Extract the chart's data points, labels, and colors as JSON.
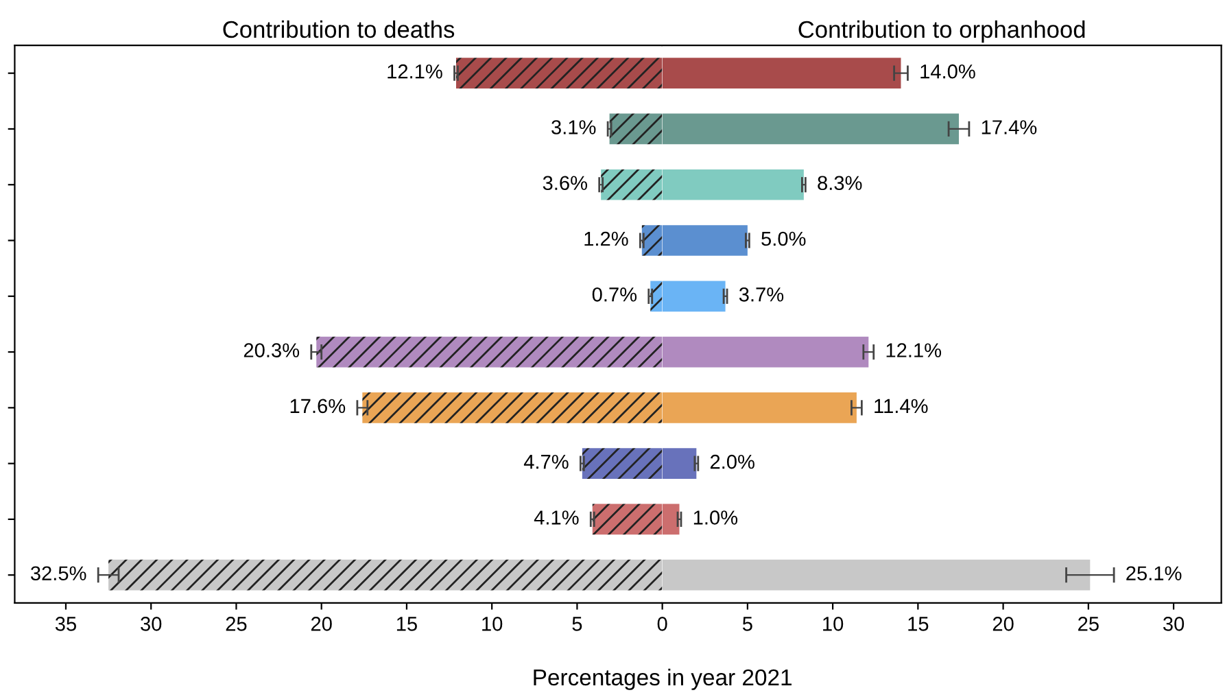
{
  "chart_data": [
    {
      "type": "bar",
      "orientation": "horizontal",
      "title": "Contribution to deaths",
      "xlabel": "Percentages in year 2021",
      "categories": [
        null,
        null,
        null,
        null,
        null,
        null,
        null,
        null,
        null,
        null
      ],
      "series": [
        {
          "colors": [
            "#a84b4b",
            "#6a9990",
            "#80cbc0",
            "#5b8fd0",
            "#6ab4f5",
            "#b08abf",
            "#eaa555",
            "#6872bb",
            "#cc6e6e",
            "#c8c8c8"
          ],
          "values": [
            12.1,
            3.1,
            3.6,
            1.2,
            0.7,
            20.3,
            17.6,
            4.7,
            4.1,
            32.5
          ],
          "errors": [
            0.1,
            0.1,
            0.1,
            0.1,
            0.1,
            0.3,
            0.3,
            0.1,
            0.1,
            0.6
          ],
          "value_labels": [
            "12.1%",
            "3.1%",
            "3.6%",
            "1.2%",
            "0.7%",
            "20.3%",
            "17.6%",
            "4.7%",
            "4.1%",
            "32.5%"
          ]
        }
      ],
      "xlim": [
        38,
        0
      ],
      "xticks": [
        35,
        30,
        25,
        20,
        15,
        10,
        5
      ],
      "tick_labels": "x"
    },
    {
      "type": "bar",
      "orientation": "horizontal",
      "title": "Contribution to orphanhood",
      "categories": [
        null,
        null,
        null,
        null,
        null,
        null,
        null,
        null,
        null,
        null
      ],
      "series": [
        {
          "colors": [
            "#a84b4b",
            "#6a9990",
            "#80cbc0",
            "#5b8fd0",
            "#6ab4f5",
            "#b08abf",
            "#eaa555",
            "#6872bb",
            "#cc6e6e",
            "#c8c8c8"
          ],
          "values": [
            14.0,
            17.4,
            8.3,
            5.0,
            3.7,
            12.1,
            11.4,
            2.0,
            1.0,
            25.1
          ],
          "errors": [
            0.4,
            0.6,
            0.1,
            0.1,
            0.1,
            0.3,
            0.3,
            0.1,
            0.1,
            [
              23.7,
              26.5
            ]
          ],
          "value_labels": [
            "14.0%",
            "17.4%",
            "8.3%",
            "5.0%",
            "3.7%",
            "12.1%",
            "11.4%",
            "2.0%",
            "1.0%",
            "25.1%"
          ]
        }
      ],
      "xlim": [
        0,
        32.8
      ],
      "xticks": [
        0,
        5,
        10,
        15,
        20,
        25,
        30
      ],
      "tick_labels": "x"
    }
  ]
}
